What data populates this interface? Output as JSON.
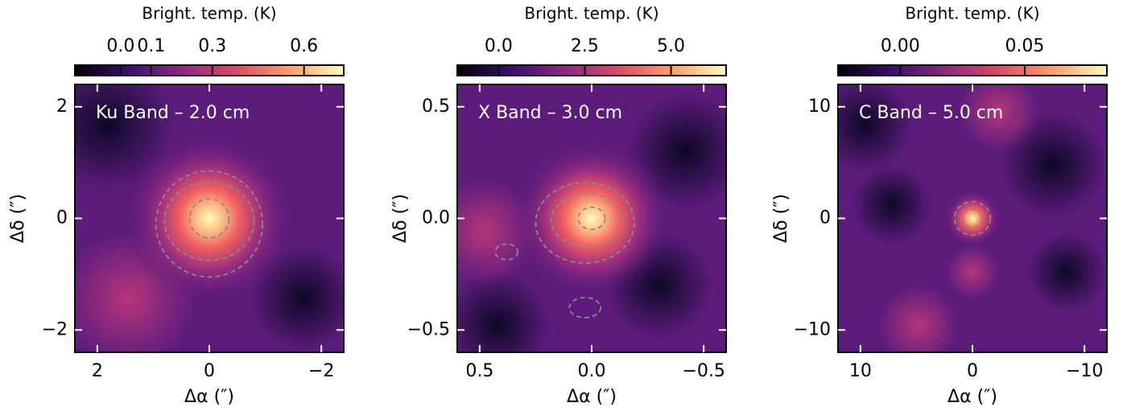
{
  "chart_data": [
    {
      "type": "image",
      "annotation": "Ku Band – 2.0 cm",
      "colorbar_label": "Bright. temp. (K)",
      "colorbar_lim": [
        -0.15,
        0.73
      ],
      "colorbar_ticks": [
        {
          "value": 0,
          "label": "0.0"
        },
        0.1,
        0.3,
        0.6
      ],
      "x_label": "Δα (″)",
      "y_label": "Δδ (″)",
      "xlim": [
        2.4,
        -2.4
      ],
      "ylim": [
        -2.4,
        2.4
      ],
      "xticks": [
        2,
        0,
        {
          "value": -2,
          "label": "−2"
        }
      ],
      "yticks": [
        {
          "value": -2,
          "label": "−2"
        },
        0,
        2
      ],
      "contours": [
        {
          "x": 0,
          "y": 0,
          "rx": 0.35,
          "ry": 0.35
        },
        {
          "x": 0,
          "y": -0.05,
          "rx": 0.8,
          "ry": 0.7
        },
        {
          "x": 0,
          "y": -0.1,
          "rx": 0.95,
          "ry": 0.95
        }
      ]
    },
    {
      "type": "image",
      "annotation": "X Band – 3.0 cm",
      "colorbar_label": "Bright. temp. (K)",
      "colorbar_lim": [
        -1.2,
        6.6
      ],
      "colorbar_ticks": [
        {
          "value": 0,
          "label": "0.0"
        },
        2.5,
        {
          "value": 5,
          "label": "5.0"
        }
      ],
      "x_label": "Δα (″)",
      "y_label": "Δδ (″)",
      "xlim": [
        0.6,
        -0.6
      ],
      "ylim": [
        -0.6,
        0.6
      ],
      "xticks": [
        0.5,
        {
          "value": 0,
          "label": "0.0"
        },
        {
          "value": -0.5,
          "label": "−0.5"
        }
      ],
      "yticks": [
        {
          "value": -0.5,
          "label": "−0.5"
        },
        {
          "value": 0,
          "label": "0.0"
        },
        0.5
      ],
      "contours": [
        {
          "x": 0.0,
          "y": 0.0,
          "rx": 0.06,
          "ry": 0.05
        },
        {
          "x": 0.02,
          "y": -0.01,
          "rx": 0.16,
          "ry": 0.12
        },
        {
          "x": 0.03,
          "y": -0.02,
          "rx": 0.22,
          "ry": 0.18
        },
        {
          "x": 0.38,
          "y": -0.15,
          "rx": 0.05,
          "ry": 0.035
        },
        {
          "x": 0.03,
          "y": -0.4,
          "rx": 0.07,
          "ry": 0.045
        }
      ]
    },
    {
      "type": "image",
      "annotation": "C Band – 5.0 cm",
      "colorbar_label": "Bright. temp. (K)",
      "colorbar_lim": [
        -0.025,
        0.083
      ],
      "colorbar_ticks": [
        {
          "value": 0,
          "label": "0.00"
        },
        {
          "value": 0.05,
          "label": "0.05"
        }
      ],
      "x_label": "Δα (″)",
      "y_label": "Δδ (″)",
      "xlim": [
        12,
        -12
      ],
      "ylim": [
        -12,
        12
      ],
      "xticks": [
        10,
        0,
        {
          "value": -10,
          "label": "−10"
        }
      ],
      "yticks": [
        {
          "value": -10,
          "label": "−10"
        },
        0,
        10
      ],
      "contours": [
        {
          "x": 0,
          "y": 0,
          "rx": 0.8,
          "ry": 0.8
        },
        {
          "x": 0,
          "y": 0,
          "rx": 1.6,
          "ry": 1.5
        }
      ]
    }
  ]
}
